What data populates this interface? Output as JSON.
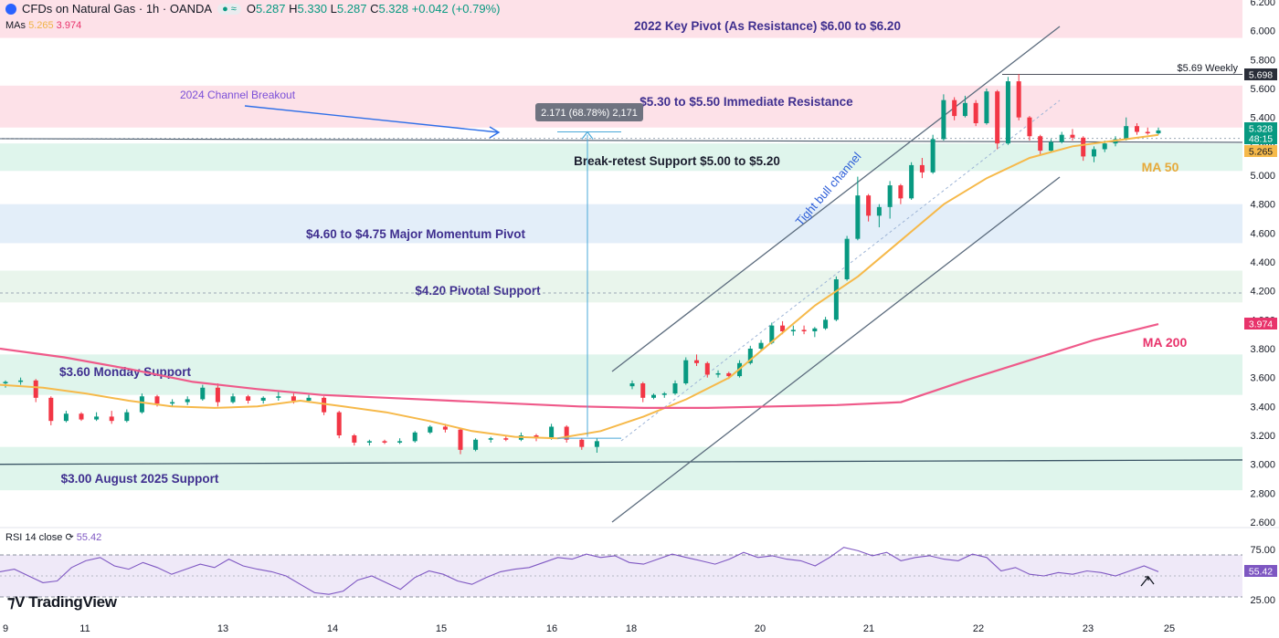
{
  "header": {
    "title": "CFDs on Natural Gas · 1h · OANDA",
    "ohlc": [
      {
        "k": "O",
        "v": "5.287"
      },
      {
        "k": "H",
        "v": "5.330"
      },
      {
        "k": "L",
        "v": "5.287"
      },
      {
        "k": "C",
        "v": "5.328"
      }
    ],
    "change": "+0.042 (+0.79%)",
    "mas_label": "MAs",
    "ma50_value": "5.265",
    "ma200_value": "3.974"
  },
  "rsi": {
    "label": "RSI 14 close",
    "value": "55.42"
  },
  "brand": "TradingView",
  "colors": {
    "up": "#089981",
    "down": "#f23645",
    "ma50": "#f6b94a",
    "ma200": "#ef5a8a",
    "resistance_zone": "#fde1e8",
    "support_zone": "#dff5ec",
    "pivot_zone": "#e3eef9",
    "label": "#3f2f8f",
    "rsi": "#7e57c2"
  },
  "chart_data": {
    "type": "candlestick",
    "title": "CFDs on Natural Gas · 1h · OANDA",
    "ylim": [
      2.6,
      6.2
    ],
    "y_ticks": [
      "6.200",
      "6.000",
      "5.800",
      "5.600",
      "5.400",
      "5.200",
      "5.000",
      "4.800",
      "4.600",
      "4.400",
      "4.200",
      "4.000",
      "3.800",
      "3.600",
      "3.400",
      "3.200",
      "3.000",
      "2.800",
      "2.600"
    ],
    "x_ticks": [
      "9",
      "11",
      "13",
      "14",
      "15",
      "16",
      "18",
      "20",
      "21",
      "22",
      "23",
      "25"
    ],
    "zones": [
      {
        "label": "2022 Key Pivot (As Resistance) $6.00 to $6.20",
        "low": 5.95,
        "high": 6.25,
        "kind": "resistance"
      },
      {
        "label": "$5.30 to $5.50 Immediate Resistance",
        "low": 5.33,
        "high": 5.62,
        "kind": "resistance"
      },
      {
        "label": "Break-retest Support $5.00 to $5.20",
        "low": 5.03,
        "high": 5.22,
        "kind": "support"
      },
      {
        "label": "$4.60 to $4.75 Major Momentum Pivot",
        "low": 4.53,
        "high": 4.8,
        "kind": "pivot"
      },
      {
        "label": "$4.20 Pivotal Support",
        "low": 4.12,
        "high": 4.34,
        "kind": "support_light"
      },
      {
        "label": "$3.60 Monday Support",
        "low": 3.48,
        "high": 3.76,
        "kind": "support"
      },
      {
        "label": "$3.00 August 2025 Support",
        "low": 2.82,
        "high": 3.12,
        "kind": "support"
      }
    ],
    "annotations": [
      {
        "text": "2024 Channel Breakout"
      },
      {
        "text": "2.171 (68.78%) 2,171"
      },
      {
        "text": "Tight bull channel"
      },
      {
        "text": "$5.69 Weekly"
      },
      {
        "text": "MA 50"
      },
      {
        "text": "MA 200"
      }
    ],
    "price_badges": [
      {
        "text": "5.698",
        "kind": "weekly"
      },
      {
        "text": "5.328",
        "kind": "last"
      },
      {
        "text": "48:15",
        "kind": "countdown"
      },
      {
        "text": "5.265",
        "kind": "ma50"
      },
      {
        "text": "3.974",
        "kind": "ma200"
      }
    ],
    "candles": [
      [
        3.56,
        3.58,
        3.53,
        3.57
      ],
      [
        3.57,
        3.6,
        3.55,
        3.58
      ],
      [
        3.58,
        3.59,
        3.43,
        3.46
      ],
      [
        3.46,
        3.47,
        3.27,
        3.3
      ],
      [
        3.3,
        3.37,
        3.29,
        3.35
      ],
      [
        3.35,
        3.36,
        3.3,
        3.31
      ],
      [
        3.31,
        3.36,
        3.3,
        3.33
      ],
      [
        3.33,
        3.37,
        3.28,
        3.3
      ],
      [
        3.3,
        3.38,
        3.29,
        3.36
      ],
      [
        3.36,
        3.49,
        3.35,
        3.47
      ],
      [
        3.47,
        3.48,
        3.4,
        3.42
      ],
      [
        3.42,
        3.45,
        3.4,
        3.43
      ],
      [
        3.43,
        3.47,
        3.41,
        3.45
      ],
      [
        3.45,
        3.55,
        3.44,
        3.53
      ],
      [
        3.53,
        3.56,
        3.4,
        3.43
      ],
      [
        3.43,
        3.49,
        3.42,
        3.47
      ],
      [
        3.47,
        3.48,
        3.42,
        3.44
      ],
      [
        3.44,
        3.47,
        3.42,
        3.46
      ],
      [
        3.46,
        3.5,
        3.44,
        3.47
      ],
      [
        3.47,
        3.49,
        3.42,
        3.44
      ],
      [
        3.44,
        3.48,
        3.43,
        3.46
      ],
      [
        3.46,
        3.47,
        3.34,
        3.36
      ],
      [
        3.36,
        3.37,
        3.18,
        3.2
      ],
      [
        3.2,
        3.21,
        3.13,
        3.15
      ],
      [
        3.15,
        3.17,
        3.13,
        3.16
      ],
      [
        3.16,
        3.17,
        3.14,
        3.15
      ],
      [
        3.15,
        3.18,
        3.14,
        3.16
      ],
      [
        3.16,
        3.23,
        3.15,
        3.22
      ],
      [
        3.22,
        3.27,
        3.21,
        3.26
      ],
      [
        3.26,
        3.28,
        3.22,
        3.24
      ],
      [
        3.24,
        3.25,
        3.07,
        3.1
      ],
      [
        3.1,
        3.18,
        3.09,
        3.17
      ],
      [
        3.17,
        3.19,
        3.15,
        3.18
      ],
      [
        3.18,
        3.2,
        3.16,
        3.17
      ],
      [
        3.17,
        3.22,
        3.16,
        3.2
      ],
      [
        3.2,
        3.21,
        3.16,
        3.18
      ],
      [
        3.18,
        3.28,
        3.17,
        3.26
      ],
      [
        3.26,
        3.27,
        3.15,
        3.17
      ],
      [
        3.17,
        3.18,
        3.1,
        3.12
      ],
      [
        3.12,
        3.18,
        3.08,
        3.16
      ],
      [
        3.54,
        3.58,
        3.52,
        3.56
      ],
      [
        3.56,
        3.57,
        3.43,
        3.46
      ],
      [
        3.46,
        3.49,
        3.45,
        3.48
      ],
      [
        3.48,
        3.5,
        3.46,
        3.49
      ],
      [
        3.49,
        3.58,
        3.48,
        3.56
      ],
      [
        3.56,
        3.74,
        3.55,
        3.72
      ],
      [
        3.72,
        3.76,
        3.68,
        3.7
      ],
      [
        3.7,
        3.71,
        3.6,
        3.62
      ],
      [
        3.62,
        3.65,
        3.6,
        3.63
      ],
      [
        3.63,
        3.64,
        3.59,
        3.61
      ],
      [
        3.61,
        3.72,
        3.6,
        3.7
      ],
      [
        3.7,
        3.82,
        3.69,
        3.8
      ],
      [
        3.8,
        3.86,
        3.78,
        3.84
      ],
      [
        3.84,
        3.98,
        3.83,
        3.96
      ],
      [
        3.96,
        3.99,
        3.9,
        3.92
      ],
      [
        3.92,
        3.96,
        3.89,
        3.93
      ],
      [
        3.93,
        3.96,
        3.9,
        3.92
      ],
      [
        3.92,
        3.95,
        3.88,
        3.94
      ],
      [
        3.94,
        4.02,
        3.93,
        4.0
      ],
      [
        4.0,
        4.3,
        3.99,
        4.28
      ],
      [
        4.28,
        4.58,
        4.27,
        4.56
      ],
      [
        4.56,
        4.99,
        4.55,
        4.86
      ],
      [
        4.86,
        4.87,
        4.68,
        4.72
      ],
      [
        4.72,
        4.8,
        4.64,
        4.78
      ],
      [
        4.78,
        4.96,
        4.7,
        4.93
      ],
      [
        4.93,
        4.94,
        4.8,
        4.84
      ],
      [
        4.84,
        5.09,
        4.83,
        5.07
      ],
      [
        5.07,
        5.12,
        4.98,
        5.02
      ],
      [
        5.02,
        5.28,
        5.01,
        5.25
      ],
      [
        5.25,
        5.56,
        5.24,
        5.52
      ],
      [
        5.52,
        5.54,
        5.38,
        5.41
      ],
      [
        5.41,
        5.55,
        5.4,
        5.5
      ],
      [
        5.5,
        5.52,
        5.34,
        5.36
      ],
      [
        5.36,
        5.6,
        5.35,
        5.58
      ],
      [
        5.58,
        5.59,
        5.18,
        5.22
      ],
      [
        5.22,
        5.68,
        5.21,
        5.65
      ],
      [
        5.65,
        5.7,
        5.38,
        5.4
      ],
      [
        5.4,
        5.41,
        5.24,
        5.27
      ],
      [
        5.27,
        5.28,
        5.14,
        5.17
      ],
      [
        5.17,
        5.25,
        5.16,
        5.23
      ],
      [
        5.23,
        5.3,
        5.22,
        5.28
      ],
      [
        5.28,
        5.32,
        5.24,
        5.26
      ],
      [
        5.26,
        5.27,
        5.1,
        5.13
      ],
      [
        5.13,
        5.2,
        5.09,
        5.18
      ],
      [
        5.18,
        5.24,
        5.16,
        5.22
      ],
      [
        5.22,
        5.27,
        5.2,
        5.25
      ],
      [
        5.25,
        5.4,
        5.24,
        5.34
      ],
      [
        5.34,
        5.36,
        5.28,
        5.3
      ],
      [
        5.3,
        5.33,
        5.28,
        5.29
      ],
      [
        5.29,
        5.33,
        5.28,
        5.31
      ]
    ],
    "ma50": [
      3.55,
      3.53,
      3.49,
      3.44,
      3.4,
      3.39,
      3.4,
      3.44,
      3.4,
      3.36,
      3.3,
      3.23,
      3.19,
      3.18,
      3.23,
      3.33,
      3.45,
      3.6,
      3.85,
      4.1,
      4.3,
      4.55,
      4.8,
      4.98,
      5.12,
      5.2,
      5.24,
      5.28
    ],
    "ma200": [
      3.8,
      3.74,
      3.66,
      3.57,
      3.52,
      3.48,
      3.46,
      3.44,
      3.42,
      3.4,
      3.39,
      3.39,
      3.4,
      3.41,
      3.43,
      3.58,
      3.72,
      3.86,
      3.97
    ],
    "rsi_range": [
      25,
      75
    ],
    "rsi_levels": [
      "75.00",
      "25.00"
    ],
    "rsi_values": [
      55,
      58,
      50,
      42,
      44,
      60,
      68,
      72,
      62,
      58,
      66,
      60,
      52,
      58,
      64,
      60,
      70,
      62,
      58,
      55,
      50,
      40,
      30,
      28,
      32,
      45,
      50,
      42,
      34,
      48,
      56,
      52,
      44,
      40,
      48,
      55,
      58,
      60,
      66,
      72,
      70,
      76,
      72,
      74,
      66,
      64,
      70,
      76,
      72,
      68,
      64,
      70,
      78,
      72,
      74,
      70,
      68,
      62,
      72,
      84,
      80,
      74,
      78,
      68,
      72,
      74,
      70,
      68,
      76,
      72,
      56,
      60,
      52,
      50,
      54,
      52,
      56,
      54,
      50,
      56,
      62,
      55
    ]
  }
}
